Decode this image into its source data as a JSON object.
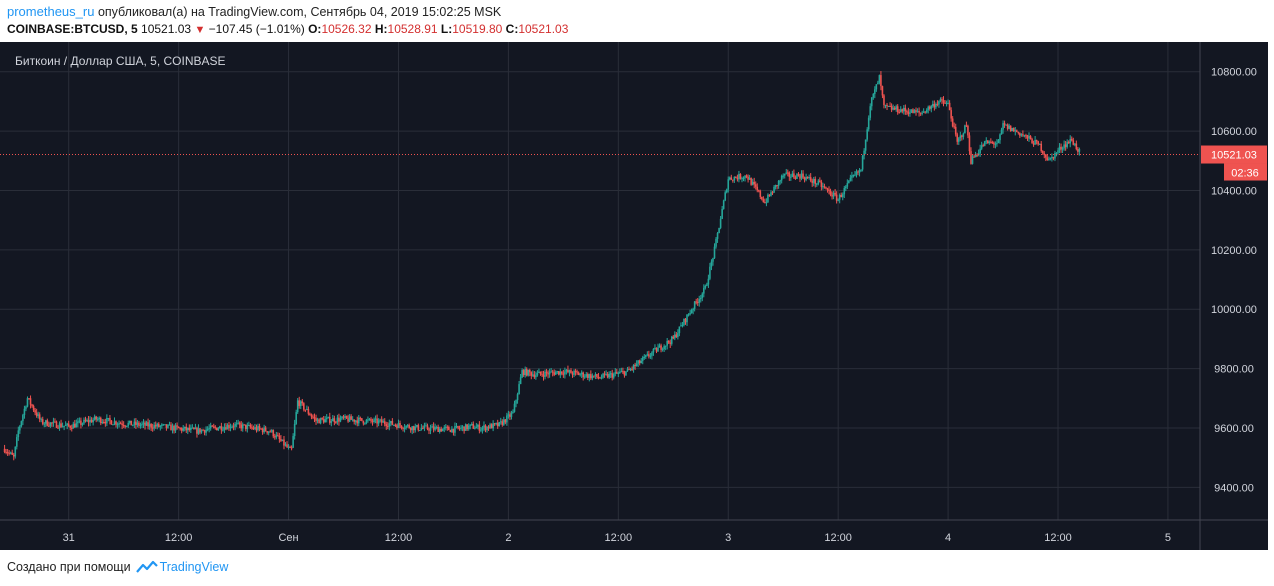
{
  "header": {
    "author": "prometheus_ru",
    "published_text": "опубликовал(а) на TradingView.com, Сентябрь 04, 2019 15:02:25 MSK",
    "symbol": "COINBASE:BTCUSD, 5",
    "last": "10521.03",
    "change": "−107.45 (−1.01%)",
    "open_label": "O:",
    "open": "10526.32",
    "high_label": "H:",
    "high": "10528.91",
    "low_label": "L:",
    "low": "10519.80",
    "close_label": "C:",
    "close": "10521.03"
  },
  "footer": {
    "text": "Создано при помощи",
    "brand": "TradingView",
    "logo_icon": "tradingview-logo-icon"
  },
  "colors": {
    "background": "#131722",
    "grid": "#2a2e39",
    "up": "#26a69a",
    "down": "#ef5350",
    "price_line": "#ef5350",
    "axis_text": "#d1d4dc",
    "badge": "#ef5350"
  },
  "chart_data": {
    "type": "candlestick",
    "title": "Биткоин / Доллар США, 5, COINBASE",
    "interval": "5",
    "ylim": [
      9290,
      10900
    ],
    "y_ticks": [
      9400,
      9600,
      9800,
      10000,
      10200,
      10400,
      10600,
      10800
    ],
    "y_tick_labels": [
      "9400.00",
      "9600.00",
      "9800.00",
      "10000.00",
      "10200.00",
      "10400.00",
      "10600.00",
      "10800.00"
    ],
    "x_range_hours": [
      -7.5,
      123.5
    ],
    "x_ticks": [
      {
        "h": 0,
        "label": "31"
      },
      {
        "h": 12,
        "label": "12:00"
      },
      {
        "h": 24,
        "label": "Сен"
      },
      {
        "h": 36,
        "label": "12:00"
      },
      {
        "h": 48,
        "label": "2"
      },
      {
        "h": 60,
        "label": "12:00"
      },
      {
        "h": 72,
        "label": "3"
      },
      {
        "h": 84,
        "label": "12:00"
      },
      {
        "h": 96,
        "label": "4"
      },
      {
        "h": 108,
        "label": "12:00"
      },
      {
        "h": 120,
        "label": "5"
      }
    ],
    "last_price": 10521.03,
    "last_price_label": "10521.03",
    "countdown_label": "02:36",
    "price_path": [
      [
        -7,
        9530
      ],
      [
        -6,
        9500
      ],
      [
        -5.5,
        9590
      ],
      [
        -4.5,
        9700
      ],
      [
        -3,
        9620
      ],
      [
        0,
        9605
      ],
      [
        3,
        9630
      ],
      [
        6,
        9615
      ],
      [
        10,
        9605
      ],
      [
        14,
        9590
      ],
      [
        18,
        9610
      ],
      [
        22,
        9590
      ],
      [
        23.5,
        9545
      ],
      [
        24.3,
        9520
      ],
      [
        25,
        9690
      ],
      [
        27,
        9625
      ],
      [
        30,
        9630
      ],
      [
        34,
        9620
      ],
      [
        38,
        9600
      ],
      [
        42,
        9595
      ],
      [
        44,
        9605
      ],
      [
        45,
        9600
      ],
      [
        47,
        9610
      ],
      [
        48.5,
        9650
      ],
      [
        49.5,
        9790
      ],
      [
        51,
        9780
      ],
      [
        54,
        9790
      ],
      [
        58,
        9770
      ],
      [
        61,
        9790
      ],
      [
        64,
        9860
      ],
      [
        66,
        9900
      ],
      [
        68,
        10000
      ],
      [
        69.5,
        10070
      ],
      [
        70.5,
        10200
      ],
      [
        72,
        10440
      ],
      [
        74,
        10450
      ],
      [
        76,
        10360
      ],
      [
        78,
        10450
      ],
      [
        80,
        10450
      ],
      [
        82,
        10420
      ],
      [
        84,
        10370
      ],
      [
        85.5,
        10440
      ],
      [
        86.5,
        10470
      ],
      [
        87.5,
        10690
      ],
      [
        88.5,
        10780
      ],
      [
        89,
        10680
      ],
      [
        91,
        10670
      ],
      [
        93,
        10660
      ],
      [
        95,
        10700
      ],
      [
        96,
        10690
      ],
      [
        97,
        10560
      ],
      [
        98,
        10620
      ],
      [
        98.5,
        10500
      ],
      [
        100,
        10560
      ],
      [
        101.5,
        10560
      ],
      [
        102,
        10620
      ],
      [
        104,
        10590
      ],
      [
        106,
        10550
      ],
      [
        107,
        10500
      ],
      [
        108.5,
        10550
      ],
      [
        109.5,
        10570
      ],
      [
        110.5,
        10521
      ]
    ]
  }
}
